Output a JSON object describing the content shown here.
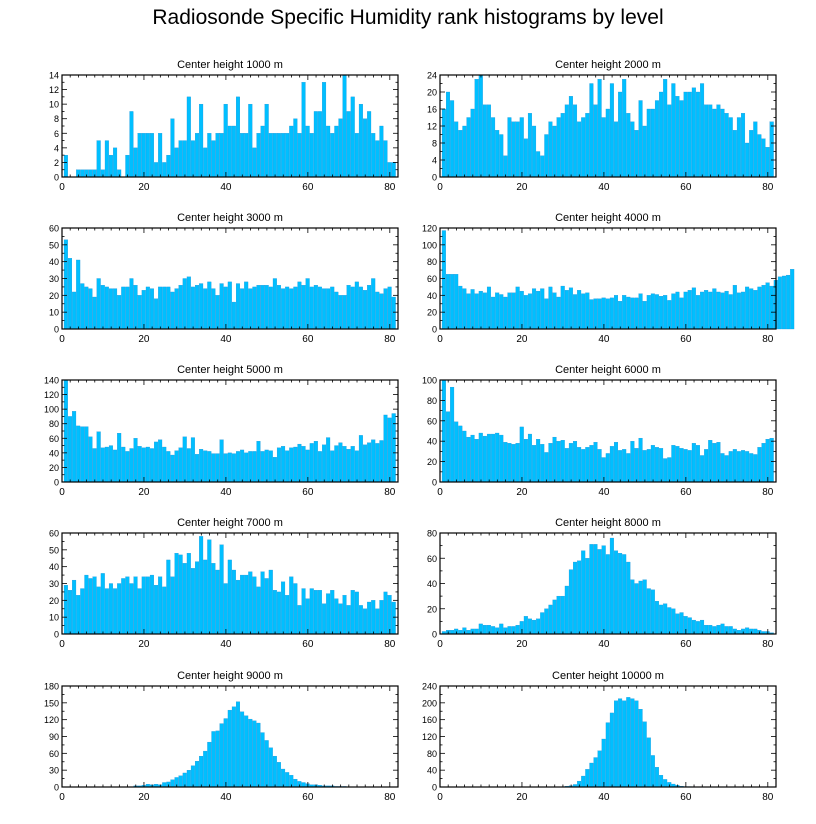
{
  "title": "Radiosonde Specific Humidity rank histograms by level",
  "colors": {
    "bar": "#00BFFF",
    "bar_edge": "#1B8FD6",
    "axis": "#000000"
  },
  "chart_data": [
    {
      "type": "bar",
      "title": "Center height 1000 m",
      "xlim": [
        0,
        82
      ],
      "ylim": [
        0,
        14
      ],
      "yticks": [
        0,
        2,
        4,
        6,
        8,
        10,
        12,
        14
      ],
      "xticks": [
        0,
        20,
        40,
        60,
        80
      ],
      "values": [
        3,
        0,
        0,
        1,
        1,
        1,
        1,
        1,
        5,
        1,
        5,
        3,
        4,
        1,
        0,
        3,
        9,
        4,
        6,
        6,
        6,
        6,
        2,
        6,
        2,
        3,
        8,
        4,
        5,
        5,
        11,
        5,
        6,
        10,
        4,
        6,
        5,
        6,
        6,
        10,
        7,
        7,
        11,
        6,
        6,
        10,
        4,
        6,
        7,
        10,
        6,
        6,
        6,
        6,
        6,
        7,
        8,
        6,
        13,
        7,
        6,
        9,
        9,
        13,
        7,
        6,
        7,
        8,
        14,
        9,
        11,
        6,
        10,
        8,
        9,
        6,
        5,
        7,
        5,
        2,
        2
      ]
    },
    {
      "type": "bar",
      "title": "Center height 2000 m",
      "xlim": [
        0,
        82
      ],
      "ylim": [
        0,
        24
      ],
      "yticks": [
        0,
        4,
        8,
        12,
        16,
        20,
        24
      ],
      "xticks": [
        0,
        20,
        40,
        60,
        80
      ],
      "values": [
        16,
        20,
        18,
        13,
        11,
        12,
        14,
        16,
        23,
        24,
        17,
        17,
        14,
        11,
        10,
        5,
        14,
        13,
        13,
        14,
        9,
        15,
        12,
        6,
        5,
        10,
        13,
        12,
        14,
        15,
        17,
        19,
        17,
        13,
        14,
        15,
        22,
        17,
        23,
        14,
        16,
        22,
        13,
        20,
        23,
        15,
        13,
        11,
        18,
        12,
        16,
        16,
        18,
        20,
        23,
        17,
        22,
        19,
        18,
        20,
        20,
        21,
        20,
        22,
        17,
        17,
        16,
        17,
        16,
        15,
        14,
        11,
        14,
        15,
        8,
        11,
        13,
        10,
        9,
        7,
        13
      ]
    },
    {
      "type": "bar",
      "title": "Center height 3000 m",
      "xlim": [
        0,
        82
      ],
      "ylim": [
        0,
        60
      ],
      "yticks": [
        0,
        10,
        20,
        30,
        40,
        50,
        60
      ],
      "xticks": [
        0,
        20,
        40,
        60,
        80
      ],
      "values": [
        53,
        42,
        22,
        41,
        27,
        25,
        24,
        19,
        30,
        26,
        25,
        24,
        24,
        20,
        25,
        25,
        30,
        26,
        20,
        23,
        25,
        24,
        18,
        25,
        25,
        25,
        22,
        24,
        26,
        30,
        31,
        25,
        26,
        27,
        24,
        28,
        24,
        20,
        27,
        25,
        28,
        16,
        27,
        24,
        28,
        24,
        25,
        26,
        26,
        26,
        25,
        30,
        26,
        24,
        25,
        24,
        25,
        28,
        26,
        30,
        25,
        26,
        25,
        24,
        24,
        25,
        22,
        20,
        20,
        26,
        25,
        28,
        25,
        23,
        26,
        30,
        22,
        21,
        24,
        25,
        19
      ]
    },
    {
      "type": "bar",
      "title": "Center height 4000 m",
      "xlim": [
        0,
        82
      ],
      "ylim": [
        0,
        120
      ],
      "yticks": [
        0,
        20,
        40,
        60,
        80,
        100,
        120
      ],
      "xticks": [
        0,
        20,
        40,
        60,
        80
      ],
      "values": [
        117,
        65,
        65,
        65,
        51,
        48,
        42,
        47,
        42,
        45,
        43,
        50,
        38,
        43,
        41,
        38,
        43,
        43,
        50,
        45,
        40,
        42,
        48,
        45,
        48,
        36,
        50,
        43,
        38,
        51,
        46,
        49,
        41,
        46,
        42,
        43,
        35,
        36,
        36,
        37,
        36,
        37,
        40,
        33,
        40,
        38,
        37,
        37,
        42,
        33,
        40,
        42,
        41,
        39,
        40,
        34,
        42,
        44,
        37,
        44,
        46,
        49,
        40,
        44,
        46,
        44,
        48,
        44,
        43,
        45,
        41,
        52,
        43,
        44,
        50,
        48,
        46,
        50,
        52,
        55,
        51,
        58,
        62,
        63,
        64,
        71
      ]
    },
    {
      "type": "bar",
      "title": "Center height 5000 m",
      "xlim": [
        0,
        82
      ],
      "ylim": [
        0,
        140
      ],
      "yticks": [
        0,
        20,
        40,
        60,
        80,
        100,
        120,
        140
      ],
      "xticks": [
        0,
        20,
        40,
        60,
        80
      ],
      "values": [
        140,
        90,
        97,
        77,
        76,
        76,
        62,
        46,
        69,
        47,
        48,
        50,
        44,
        67,
        48,
        42,
        46,
        60,
        49,
        47,
        48,
        46,
        55,
        58,
        48,
        42,
        37,
        43,
        47,
        62,
        46,
        61,
        38,
        45,
        43,
        42,
        39,
        39,
        58,
        39,
        40,
        39,
        42,
        44,
        40,
        42,
        42,
        56,
        42,
        44,
        43,
        34,
        47,
        49,
        43,
        47,
        48,
        52,
        49,
        44,
        53,
        56,
        42,
        51,
        61,
        43,
        50,
        54,
        49,
        45,
        49,
        43,
        64,
        51,
        54,
        58,
        53,
        57,
        92,
        88,
        94
      ]
    },
    {
      "type": "bar",
      "title": "Center height 6000 m",
      "xlim": [
        0,
        82
      ],
      "ylim": [
        0,
        100
      ],
      "yticks": [
        0,
        20,
        40,
        60,
        80,
        100
      ],
      "xticks": [
        0,
        20,
        40,
        60,
        80
      ],
      "values": [
        100,
        69,
        93,
        59,
        55,
        50,
        44,
        46,
        42,
        48,
        45,
        47,
        47,
        48,
        46,
        39,
        38,
        37,
        38,
        54,
        42,
        47,
        36,
        42,
        37,
        29,
        38,
        44,
        40,
        41,
        33,
        38,
        40,
        34,
        32,
        34,
        36,
        39,
        32,
        24,
        28,
        35,
        39,
        31,
        32,
        28,
        40,
        33,
        43,
        31,
        32,
        36,
        34,
        33,
        23,
        24,
        36,
        35,
        33,
        32,
        31,
        38,
        36,
        26,
        32,
        41,
        38,
        39,
        28,
        26,
        30,
        32,
        30,
        31,
        30,
        28,
        27,
        34,
        38,
        42,
        43
      ]
    },
    {
      "type": "bar",
      "title": "Center height 7000 m",
      "xlim": [
        0,
        82
      ],
      "ylim": [
        0,
        60
      ],
      "yticks": [
        0,
        10,
        20,
        30,
        40,
        50,
        60
      ],
      "xticks": [
        0,
        20,
        40,
        60,
        80
      ],
      "values": [
        29,
        26,
        32,
        23,
        27,
        35,
        33,
        34,
        28,
        36,
        27,
        30,
        27,
        30,
        33,
        34,
        30,
        34,
        27,
        34,
        34,
        35,
        29,
        34,
        28,
        44,
        34,
        48,
        47,
        42,
        48,
        39,
        43,
        58,
        44,
        56,
        42,
        38,
        53,
        30,
        44,
        38,
        32,
        35,
        35,
        37,
        34,
        28,
        37,
        33,
        38,
        26,
        25,
        31,
        23,
        34,
        30,
        17,
        27,
        21,
        27,
        26,
        26,
        18,
        24,
        26,
        21,
        18,
        23,
        17,
        26,
        25,
        17,
        15,
        19,
        20,
        15,
        20,
        25,
        23,
        19
      ]
    },
    {
      "type": "bar",
      "title": "Center height 8000 m",
      "xlim": [
        0,
        82
      ],
      "ylim": [
        0,
        80
      ],
      "yticks": [
        0,
        20,
        40,
        60,
        80
      ],
      "xticks": [
        0,
        20,
        40,
        60,
        80
      ],
      "values": [
        2,
        3,
        3,
        4,
        3,
        5,
        3,
        4,
        4,
        8,
        7,
        7,
        6,
        5,
        8,
        5,
        6,
        6,
        7,
        10,
        14,
        12,
        11,
        12,
        17,
        20,
        23,
        27,
        30,
        30,
        38,
        51,
        57,
        58,
        66,
        60,
        71,
        71,
        67,
        70,
        63,
        76,
        66,
        64,
        63,
        57,
        43,
        40,
        42,
        43,
        36,
        35,
        26,
        23,
        24,
        21,
        20,
        16,
        17,
        14,
        13,
        11,
        10,
        11,
        7,
        7,
        6,
        7,
        8,
        6,
        6,
        4,
        3,
        4,
        5,
        4,
        4,
        3,
        2,
        2,
        1
      ]
    },
    {
      "type": "bar",
      "title": "Center height 9000 m",
      "xlim": [
        0,
        82
      ],
      "ylim": [
        0,
        180
      ],
      "yticks": [
        0,
        30,
        60,
        90,
        120,
        150,
        180
      ],
      "xticks": [
        0,
        20,
        40,
        60,
        80
      ],
      "values": [
        0,
        0,
        0,
        0,
        0,
        0,
        0,
        0,
        0,
        0,
        0,
        0,
        0,
        0,
        0,
        0,
        0,
        2,
        2,
        3,
        5,
        4,
        5,
        4,
        8,
        9,
        13,
        17,
        20,
        25,
        30,
        38,
        46,
        55,
        64,
        80,
        99,
        100,
        113,
        122,
        137,
        143,
        152,
        134,
        127,
        121,
        118,
        114,
        97,
        83,
        70,
        55,
        44,
        32,
        26,
        21,
        14,
        10,
        8,
        6,
        4,
        4,
        3,
        2,
        2,
        2,
        1,
        1,
        1,
        0,
        0,
        0,
        0,
        0,
        0,
        0,
        0,
        0,
        0,
        0,
        0
      ]
    },
    {
      "type": "bar",
      "title": "Center height 10000 m",
      "xlim": [
        0,
        82
      ],
      "ylim": [
        0,
        240
      ],
      "yticks": [
        0,
        40,
        80,
        120,
        160,
        200,
        240
      ],
      "xticks": [
        0,
        20,
        40,
        60,
        80
      ],
      "values": [
        0,
        0,
        0,
        0,
        0,
        0,
        0,
        0,
        0,
        0,
        0,
        0,
        0,
        0,
        0,
        0,
        0,
        0,
        0,
        0,
        0,
        0,
        0,
        0,
        0,
        0,
        0,
        0,
        0,
        0,
        2,
        3,
        6,
        14,
        26,
        42,
        57,
        70,
        86,
        114,
        153,
        176,
        205,
        210,
        205,
        213,
        210,
        205,
        185,
        155,
        117,
        75,
        47,
        28,
        18,
        11,
        7,
        4,
        2,
        1,
        1,
        0,
        0,
        0,
        0,
        0,
        0,
        0,
        0,
        0,
        0,
        0,
        0,
        0,
        0,
        0,
        0,
        0,
        0,
        0,
        0
      ]
    }
  ]
}
